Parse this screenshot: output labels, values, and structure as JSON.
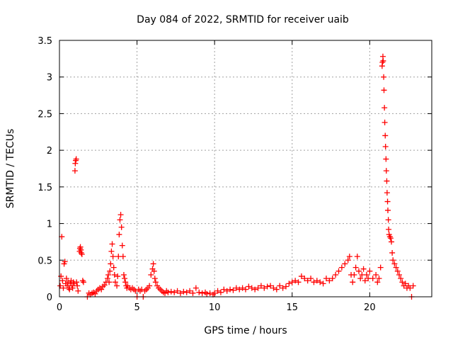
{
  "chart_data": {
    "type": "scatter",
    "title": "Day 084 of 2022, SRMTID for receiver uaib",
    "xlabel": "GPS time / hours",
    "ylabel": "SRMTID / TECUs",
    "xlim": [
      0,
      24
    ],
    "ylim": [
      0,
      3.5
    ],
    "x_ticks": [
      0,
      5,
      10,
      15,
      20
    ],
    "x_tick_labels": [
      "0",
      "5",
      "10",
      "15",
      "20"
    ],
    "y_ticks": [
      0,
      0.5,
      1,
      1.5,
      2,
      2.5,
      3,
      3.5
    ],
    "y_tick_labels": [
      "0",
      "0.5",
      "1",
      "1.5",
      "2",
      "2.5",
      "3",
      "3.5"
    ],
    "grid": true,
    "marker": "+",
    "series": [
      {
        "name": "SRMTID",
        "color": "#ff0000",
        "points": [
          [
            0.05,
            0.15
          ],
          [
            0.1,
            0.28
          ],
          [
            0.15,
            0.82
          ],
          [
            0.2,
            0.22
          ],
          [
            0.25,
            0.12
          ],
          [
            0.3,
            0.45
          ],
          [
            0.35,
            0.48
          ],
          [
            0.4,
            0.18
          ],
          [
            0.45,
            0.25
          ],
          [
            0.5,
            0.15
          ],
          [
            0.55,
            0.2
          ],
          [
            0.6,
            0.12
          ],
          [
            0.65,
            0.1
          ],
          [
            0.7,
            0.18
          ],
          [
            0.75,
            0.22
          ],
          [
            0.8,
            0.15
          ],
          [
            0.85,
            0.12
          ],
          [
            0.9,
            0.2
          ],
          [
            0.95,
            0.18
          ],
          [
            1.0,
            1.72
          ],
          [
            1.02,
            1.82
          ],
          [
            1.05,
            1.86
          ],
          [
            1.08,
            1.88
          ],
          [
            1.1,
            0.2
          ],
          [
            1.15,
            0.15
          ],
          [
            1.2,
            0.08
          ],
          [
            1.3,
            0.62
          ],
          [
            1.32,
            0.66
          ],
          [
            1.35,
            0.68
          ],
          [
            1.38,
            0.64
          ],
          [
            1.4,
            0.6
          ],
          [
            1.45,
            0.58
          ],
          [
            1.5,
            0.22
          ],
          [
            1.55,
            0.2
          ],
          [
            1.8,
            0.0
          ],
          [
            1.9,
            0.05
          ],
          [
            2.0,
            0.03
          ],
          [
            2.1,
            0.05
          ],
          [
            2.2,
            0.06
          ],
          [
            2.3,
            0.04
          ],
          [
            2.4,
            0.08
          ],
          [
            2.5,
            0.1
          ],
          [
            2.6,
            0.12
          ],
          [
            2.7,
            0.1
          ],
          [
            2.8,
            0.14
          ],
          [
            2.9,
            0.16
          ],
          [
            3.0,
            0.2
          ],
          [
            3.1,
            0.25
          ],
          [
            3.15,
            0.3
          ],
          [
            3.2,
            0.2
          ],
          [
            3.25,
            0.35
          ],
          [
            3.3,
            0.45
          ],
          [
            3.35,
            0.62
          ],
          [
            3.4,
            0.72
          ],
          [
            3.45,
            0.55
          ],
          [
            3.5,
            0.4
          ],
          [
            3.55,
            0.3
          ],
          [
            3.6,
            0.2
          ],
          [
            3.7,
            0.15
          ],
          [
            3.75,
            0.28
          ],
          [
            3.8,
            0.55
          ],
          [
            3.85,
            0.85
          ],
          [
            3.9,
            1.05
          ],
          [
            3.95,
            1.12
          ],
          [
            4.0,
            0.95
          ],
          [
            4.05,
            0.7
          ],
          [
            4.1,
            0.55
          ],
          [
            4.15,
            0.3
          ],
          [
            4.2,
            0.25
          ],
          [
            4.25,
            0.2
          ],
          [
            4.3,
            0.15
          ],
          [
            4.35,
            0.12
          ],
          [
            4.4,
            0.15
          ],
          [
            4.5,
            0.12
          ],
          [
            4.6,
            0.1
          ],
          [
            4.7,
            0.12
          ],
          [
            4.8,
            0.1
          ],
          [
            4.9,
            0.08
          ],
          [
            5.0,
            0.0
          ],
          [
            5.1,
            0.1
          ],
          [
            5.2,
            0.08
          ],
          [
            5.3,
            0.1
          ],
          [
            5.4,
            0.0
          ],
          [
            5.5,
            0.08
          ],
          [
            5.6,
            0.1
          ],
          [
            5.7,
            0.12
          ],
          [
            5.8,
            0.15
          ],
          [
            5.9,
            0.3
          ],
          [
            6.0,
            0.38
          ],
          [
            6.05,
            0.45
          ],
          [
            6.1,
            0.35
          ],
          [
            6.15,
            0.25
          ],
          [
            6.2,
            0.2
          ],
          [
            6.3,
            0.15
          ],
          [
            6.4,
            0.12
          ],
          [
            6.5,
            0.1
          ],
          [
            6.6,
            0.08
          ],
          [
            6.7,
            0.06
          ],
          [
            6.8,
            0.05
          ],
          [
            6.9,
            0.08
          ],
          [
            7.0,
            0.06
          ],
          [
            7.2,
            0.07
          ],
          [
            7.4,
            0.06
          ],
          [
            7.6,
            0.08
          ],
          [
            7.8,
            0.05
          ],
          [
            8.0,
            0.07
          ],
          [
            8.2,
            0.06
          ],
          [
            8.4,
            0.08
          ],
          [
            8.6,
            0.05
          ],
          [
            8.8,
            0.12
          ],
          [
            9.0,
            0.06
          ],
          [
            9.2,
            0.05
          ],
          [
            9.4,
            0.06
          ],
          [
            9.5,
            0.04
          ],
          [
            9.7,
            0.05
          ],
          [
            9.9,
            0.03
          ],
          [
            10.0,
            0.05
          ],
          [
            10.2,
            0.08
          ],
          [
            10.4,
            0.06
          ],
          [
            10.6,
            0.1
          ],
          [
            10.8,
            0.08
          ],
          [
            11.0,
            0.1
          ],
          [
            11.2,
            0.09
          ],
          [
            11.4,
            0.12
          ],
          [
            11.6,
            0.1
          ],
          [
            11.8,
            0.12
          ],
          [
            12.0,
            0.1
          ],
          [
            12.2,
            0.14
          ],
          [
            12.4,
            0.12
          ],
          [
            12.6,
            0.1
          ],
          [
            12.8,
            0.12
          ],
          [
            13.0,
            0.15
          ],
          [
            13.2,
            0.12
          ],
          [
            13.4,
            0.14
          ],
          [
            13.6,
            0.15
          ],
          [
            13.8,
            0.12
          ],
          [
            14.0,
            0.1
          ],
          [
            14.2,
            0.15
          ],
          [
            14.4,
            0.12
          ],
          [
            14.6,
            0.14
          ],
          [
            14.8,
            0.18
          ],
          [
            15.0,
            0.2
          ],
          [
            15.2,
            0.22
          ],
          [
            15.4,
            0.2
          ],
          [
            15.6,
            0.28
          ],
          [
            15.8,
            0.25
          ],
          [
            16.0,
            0.22
          ],
          [
            16.2,
            0.25
          ],
          [
            16.4,
            0.2
          ],
          [
            16.6,
            0.22
          ],
          [
            16.8,
            0.2
          ],
          [
            17.0,
            0.18
          ],
          [
            17.2,
            0.25
          ],
          [
            17.4,
            0.22
          ],
          [
            17.6,
            0.25
          ],
          [
            17.8,
            0.3
          ],
          [
            18.0,
            0.35
          ],
          [
            18.2,
            0.4
          ],
          [
            18.4,
            0.45
          ],
          [
            18.6,
            0.5
          ],
          [
            18.7,
            0.55
          ],
          [
            18.8,
            0.3
          ],
          [
            18.9,
            0.2
          ],
          [
            19.0,
            0.3
          ],
          [
            19.1,
            0.4
          ],
          [
            19.2,
            0.55
          ],
          [
            19.3,
            0.35
          ],
          [
            19.4,
            0.25
          ],
          [
            19.5,
            0.3
          ],
          [
            19.6,
            0.38
          ],
          [
            19.7,
            0.22
          ],
          [
            19.8,
            0.3
          ],
          [
            19.9,
            0.25
          ],
          [
            20.0,
            0.35
          ],
          [
            20.2,
            0.25
          ],
          [
            20.4,
            0.3
          ],
          [
            20.5,
            0.2
          ],
          [
            20.6,
            0.25
          ],
          [
            20.7,
            0.4
          ],
          [
            20.8,
            3.15
          ],
          [
            20.82,
            3.2
          ],
          [
            20.85,
            3.28
          ],
          [
            20.87,
            3.22
          ],
          [
            20.9,
            3.0
          ],
          [
            20.92,
            2.82
          ],
          [
            20.95,
            2.58
          ],
          [
            20.97,
            2.38
          ],
          [
            21.0,
            2.2
          ],
          [
            21.02,
            2.05
          ],
          [
            21.05,
            1.88
          ],
          [
            21.07,
            1.72
          ],
          [
            21.1,
            1.58
          ],
          [
            21.12,
            1.42
          ],
          [
            21.15,
            1.3
          ],
          [
            21.17,
            1.18
          ],
          [
            21.2,
            1.05
          ],
          [
            21.22,
            0.92
          ],
          [
            21.25,
            0.85
          ],
          [
            21.3,
            0.82
          ],
          [
            21.35,
            0.8
          ],
          [
            21.4,
            0.75
          ],
          [
            21.45,
            0.6
          ],
          [
            21.5,
            0.5
          ],
          [
            21.6,
            0.45
          ],
          [
            21.7,
            0.4
          ],
          [
            21.8,
            0.35
          ],
          [
            21.9,
            0.3
          ],
          [
            22.0,
            0.25
          ],
          [
            22.1,
            0.2
          ],
          [
            22.2,
            0.15
          ],
          [
            22.3,
            0.18
          ],
          [
            22.4,
            0.12
          ],
          [
            22.5,
            0.15
          ],
          [
            22.6,
            0.12
          ],
          [
            22.7,
            0.0
          ],
          [
            22.8,
            0.15
          ]
        ]
      }
    ]
  }
}
